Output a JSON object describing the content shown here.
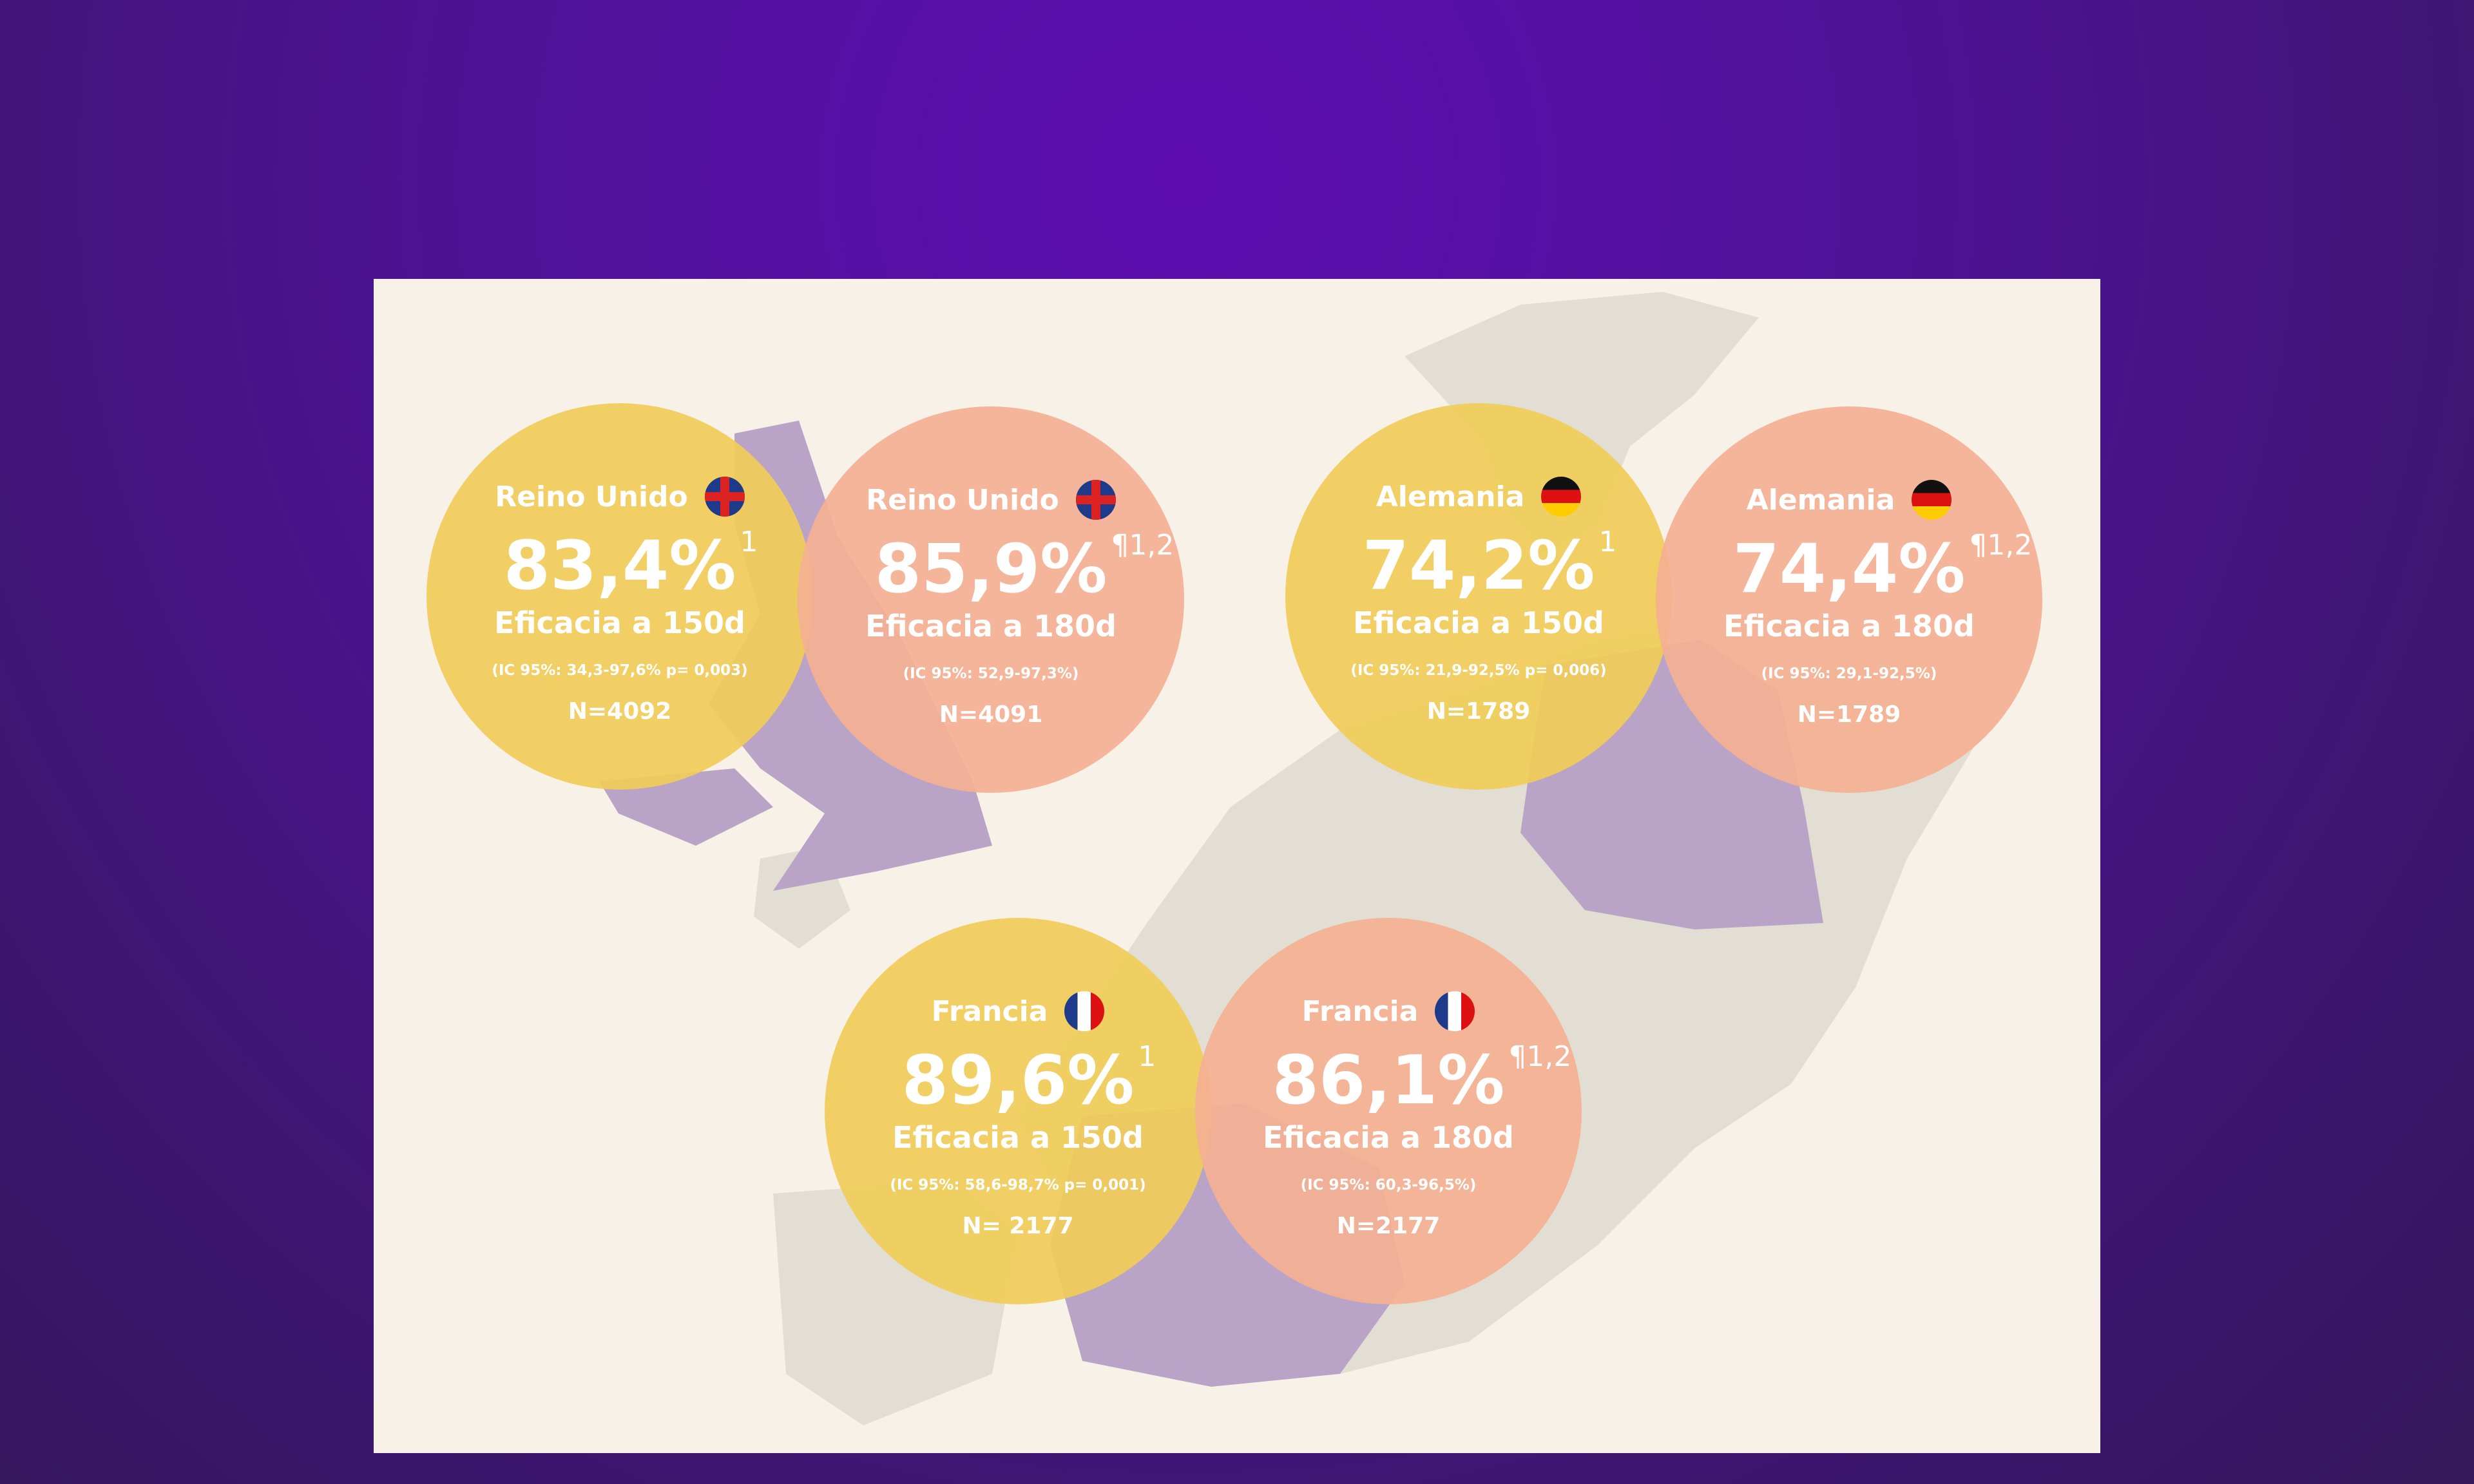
{
  "colors": {
    "yellow": "#f0cc58",
    "pink": "#f4b092",
    "highlight": "#b9a3c6",
    "land": "#e3ded3"
  },
  "circles": [
    {
      "country": "Reino Unido",
      "flag": "uk-flag-icon",
      "value": "83,4%",
      "sup": "1",
      "label": "Eficacia a 150d",
      "ci": "(IC 95%: 34,3-97,6% p= 0,003)",
      "n": "N=4092"
    },
    {
      "country": "Reino Unido",
      "flag": "uk-flag-icon",
      "value": "85,9%",
      "sup": "¶1,2",
      "label": "Eficacia a 180d",
      "ci": "(IC 95%: 52,9-97,3%)",
      "n": "N=4091"
    },
    {
      "country": "Alemania",
      "flag": "germany-flag-icon",
      "value": "74,2%",
      "sup": "1",
      "label": "Eficacia a 150d",
      "ci": "(IC 95%: 21,9-92,5% p= 0,006)",
      "n": "N=1789"
    },
    {
      "country": "Alemania",
      "flag": "germany-flag-icon",
      "value": "74,4%",
      "sup": "¶1,2",
      "label": "Eficacia a 180d",
      "ci": "(IC 95%: 29,1-92,5%)",
      "n": "N=1789"
    },
    {
      "country": "Francia",
      "flag": "france-flag-icon",
      "value": "89,6%",
      "sup": "1",
      "label": "Eficacia a 150d",
      "ci": "(IC 95%: 58,6-98,7% p= 0,001)",
      "n": "N= 2177"
    },
    {
      "country": "Francia",
      "flag": "france-flag-icon",
      "value": "86,1%",
      "sup": "¶1,2",
      "label": "Eficacia a 180d",
      "ci": "(IC 95%: 60,3-96,5%)",
      "n": "N=2177"
    }
  ]
}
